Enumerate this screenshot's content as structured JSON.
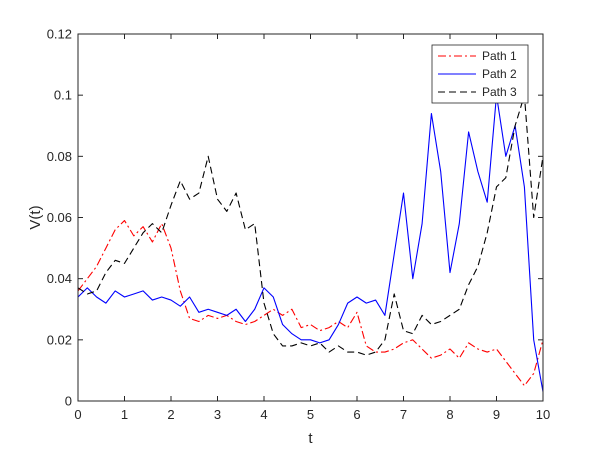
{
  "chart_data": {
    "type": "line",
    "xlabel": "t",
    "ylabel": "V(t)",
    "xlim": [
      0,
      10
    ],
    "ylim": [
      0,
      0.12
    ],
    "xticks": [
      0,
      1,
      2,
      3,
      4,
      5,
      6,
      7,
      8,
      9,
      10
    ],
    "xtick_labels": [
      "0",
      "1",
      "2",
      "3",
      "4",
      "5",
      "6",
      "7",
      "8",
      "9",
      "10"
    ],
    "yticks": [
      0,
      0.02,
      0.04,
      0.06,
      0.08,
      0.1,
      0.12
    ],
    "ytick_labels": [
      "0",
      "0.02",
      "0.04",
      "0.06",
      "0.08",
      "0.1",
      "0.12"
    ],
    "grid": false,
    "legend_position": "top-right",
    "series": [
      {
        "name": "Path 1",
        "color": "#ff0000",
        "line_style": "dash-dot",
        "x": [
          0,
          0.2,
          0.4,
          0.6,
          0.8,
          1.0,
          1.2,
          1.4,
          1.6,
          1.8,
          2.0,
          2.2,
          2.4,
          2.6,
          2.8,
          3.0,
          3.2,
          3.4,
          3.6,
          3.8,
          4.0,
          4.2,
          4.4,
          4.6,
          4.8,
          5.0,
          5.2,
          5.4,
          5.6,
          5.8,
          6.0,
          6.2,
          6.4,
          6.6,
          6.8,
          7.0,
          7.2,
          7.4,
          7.6,
          7.8,
          8.0,
          8.2,
          8.4,
          8.6,
          8.8,
          9.0,
          9.2,
          9.4,
          9.6,
          9.8,
          10.0
        ],
        "y": [
          0.036,
          0.04,
          0.044,
          0.05,
          0.056,
          0.059,
          0.054,
          0.057,
          0.052,
          0.058,
          0.05,
          0.036,
          0.027,
          0.026,
          0.028,
          0.027,
          0.028,
          0.026,
          0.025,
          0.026,
          0.028,
          0.03,
          0.028,
          0.03,
          0.024,
          0.025,
          0.023,
          0.024,
          0.026,
          0.024,
          0.029,
          0.018,
          0.016,
          0.016,
          0.017,
          0.019,
          0.02,
          0.017,
          0.014,
          0.015,
          0.017,
          0.014,
          0.019,
          0.017,
          0.016,
          0.017,
          0.013,
          0.009,
          0.005,
          0.009,
          0.02
        ]
      },
      {
        "name": "Path 2",
        "color": "#0000ff",
        "line_style": "solid",
        "x": [
          0,
          0.2,
          0.4,
          0.6,
          0.8,
          1.0,
          1.2,
          1.4,
          1.6,
          1.8,
          2.0,
          2.2,
          2.4,
          2.6,
          2.8,
          3.0,
          3.2,
          3.4,
          3.6,
          3.8,
          4.0,
          4.2,
          4.4,
          4.6,
          4.8,
          5.0,
          5.2,
          5.4,
          5.6,
          5.8,
          6.0,
          6.2,
          6.4,
          6.6,
          6.8,
          7.0,
          7.2,
          7.4,
          7.6,
          7.8,
          8.0,
          8.2,
          8.4,
          8.6,
          8.8,
          9.0,
          9.2,
          9.4,
          9.6,
          9.8,
          10.0
        ],
        "y": [
          0.034,
          0.037,
          0.034,
          0.032,
          0.036,
          0.034,
          0.035,
          0.036,
          0.033,
          0.034,
          0.033,
          0.031,
          0.034,
          0.029,
          0.03,
          0.029,
          0.028,
          0.03,
          0.026,
          0.03,
          0.037,
          0.034,
          0.025,
          0.022,
          0.02,
          0.02,
          0.019,
          0.02,
          0.025,
          0.032,
          0.034,
          0.032,
          0.033,
          0.028,
          0.048,
          0.068,
          0.04,
          0.058,
          0.094,
          0.075,
          0.042,
          0.058,
          0.088,
          0.075,
          0.065,
          0.1,
          0.08,
          0.09,
          0.07,
          0.02,
          0.003
        ]
      },
      {
        "name": "Path 3",
        "color": "#000000",
        "line_style": "dashed",
        "x": [
          0,
          0.2,
          0.4,
          0.6,
          0.8,
          1.0,
          1.2,
          1.4,
          1.6,
          1.8,
          2.0,
          2.2,
          2.4,
          2.6,
          2.8,
          3.0,
          3.2,
          3.4,
          3.6,
          3.8,
          4.0,
          4.2,
          4.4,
          4.6,
          4.8,
          5.0,
          5.2,
          5.4,
          5.6,
          5.8,
          6.0,
          6.2,
          6.4,
          6.6,
          6.8,
          7.0,
          7.2,
          7.4,
          7.6,
          7.8,
          8.0,
          8.2,
          8.4,
          8.6,
          8.8,
          9.0,
          9.2,
          9.4,
          9.6,
          9.8,
          10.0
        ],
        "y": [
          0.037,
          0.035,
          0.036,
          0.042,
          0.046,
          0.045,
          0.05,
          0.055,
          0.058,
          0.055,
          0.064,
          0.072,
          0.066,
          0.068,
          0.08,
          0.066,
          0.062,
          0.068,
          0.056,
          0.058,
          0.032,
          0.022,
          0.018,
          0.018,
          0.019,
          0.018,
          0.019,
          0.016,
          0.018,
          0.016,
          0.016,
          0.015,
          0.016,
          0.02,
          0.035,
          0.023,
          0.022,
          0.028,
          0.025,
          0.026,
          0.028,
          0.03,
          0.038,
          0.044,
          0.055,
          0.07,
          0.073,
          0.09,
          0.1,
          0.06,
          0.08
        ]
      }
    ]
  }
}
